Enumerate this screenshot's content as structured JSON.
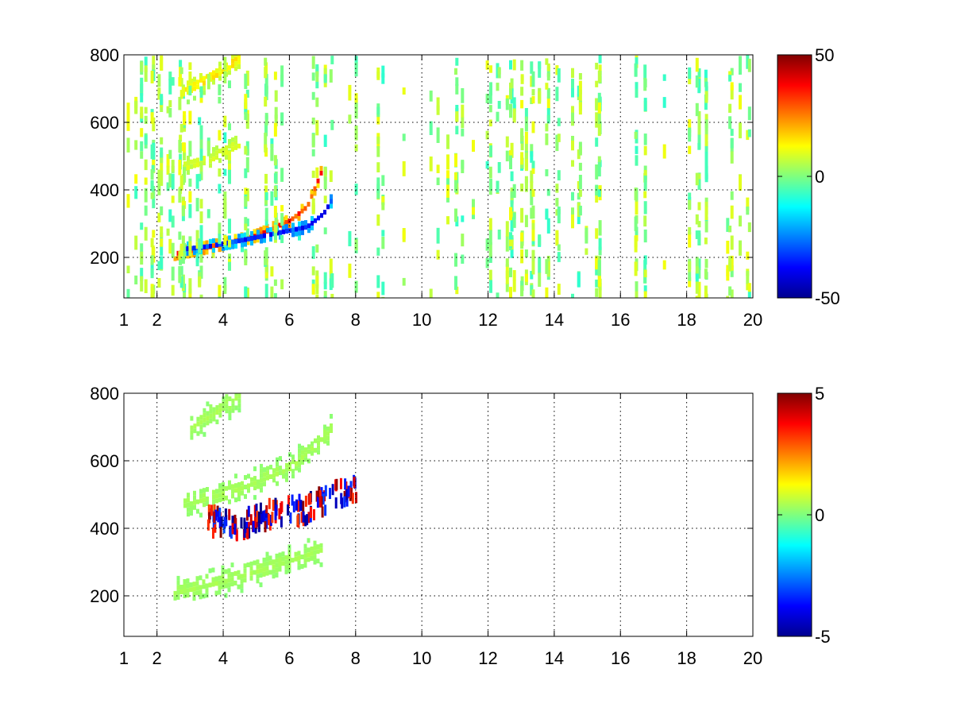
{
  "chart_data": [
    {
      "type": "heatmap",
      "title": "",
      "xlabel": "",
      "ylabel": "",
      "xlim": [
        1,
        20
      ],
      "ylim": [
        80,
        800
      ],
      "x_ticks": [
        1,
        2,
        4,
        6,
        8,
        10,
        12,
        14,
        16,
        18,
        20
      ],
      "x_tick_labels": [
        "1",
        "2",
        "4",
        "6",
        "8",
        "10",
        "12",
        "14",
        "16",
        "18",
        "20"
      ],
      "y_ticks": [
        200,
        400,
        600,
        800
      ],
      "y_tick_labels": [
        "200",
        "400",
        "600",
        "800"
      ],
      "grid": true,
      "colormap": "jet",
      "colorbar": {
        "range": [
          -50,
          50
        ],
        "ticks": [
          -50,
          0,
          50
        ],
        "tick_labels": [
          "-50",
          "0",
          "50"
        ]
      },
      "features": [
        {
          "kind": "positive-ridge",
          "x": [
            2.5,
            3,
            4,
            5,
            6,
            6.5,
            7
          ],
          "y": [
            210,
            220,
            240,
            265,
            310,
            350,
            470
          ],
          "value": 40
        },
        {
          "kind": "negative-ridge",
          "x": [
            2.8,
            3.5,
            4.5,
            5.5,
            6.5,
            7,
            7.3
          ],
          "y": [
            225,
            232,
            250,
            270,
            290,
            330,
            380
          ],
          "value": -42
        },
        {
          "kind": "weak-arc",
          "x": [
            2.8,
            3.5,
            4.5
          ],
          "y": [
            470,
            490,
            540
          ],
          "value": 12
        },
        {
          "kind": "weak-arc",
          "x": [
            2.8,
            3.5,
            4.5
          ],
          "y": [
            690,
            730,
            790
          ],
          "value": 20
        }
      ]
    },
    {
      "type": "heatmap",
      "title": "",
      "xlabel": "",
      "ylabel": "",
      "xlim": [
        1,
        20
      ],
      "ylim": [
        80,
        800
      ],
      "x_ticks": [
        1,
        2,
        4,
        6,
        8,
        10,
        12,
        14,
        16,
        18,
        20
      ],
      "x_tick_labels": [
        "1",
        "2",
        "4",
        "6",
        "8",
        "10",
        "12",
        "14",
        "16",
        "18",
        "20"
      ],
      "y_ticks": [
        200,
        400,
        600,
        800
      ],
      "y_tick_labels": [
        "200",
        "400",
        "600",
        "800"
      ],
      "grid": true,
      "colormap": "jet",
      "colorbar": {
        "range": [
          -5,
          5
        ],
        "ticks": [
          -5,
          0,
          5
        ],
        "tick_labels": [
          "-5",
          "0",
          "5"
        ]
      },
      "features": [
        {
          "kind": "band",
          "x": [
            2.5,
            4,
            5.5,
            7
          ],
          "y": [
            210,
            245,
            290,
            340
          ],
          "value": 0.5
        },
        {
          "kind": "band",
          "x": [
            2.8,
            4.5,
            6,
            7.3
          ],
          "y": [
            470,
            520,
            580,
            700
          ],
          "value": 0.5
        },
        {
          "kind": "band",
          "x": [
            3,
            4,
            4.5
          ],
          "y": [
            700,
            760,
            800
          ],
          "value": 0.5
        },
        {
          "kind": "outliers",
          "x": [
            3.5,
            4,
            4.5,
            5,
            5.5,
            6.5,
            7,
            7.5,
            8
          ],
          "y": [
            440,
            430,
            420,
            450,
            460,
            470,
            500,
            520,
            540
          ],
          "value": 5
        }
      ]
    }
  ]
}
